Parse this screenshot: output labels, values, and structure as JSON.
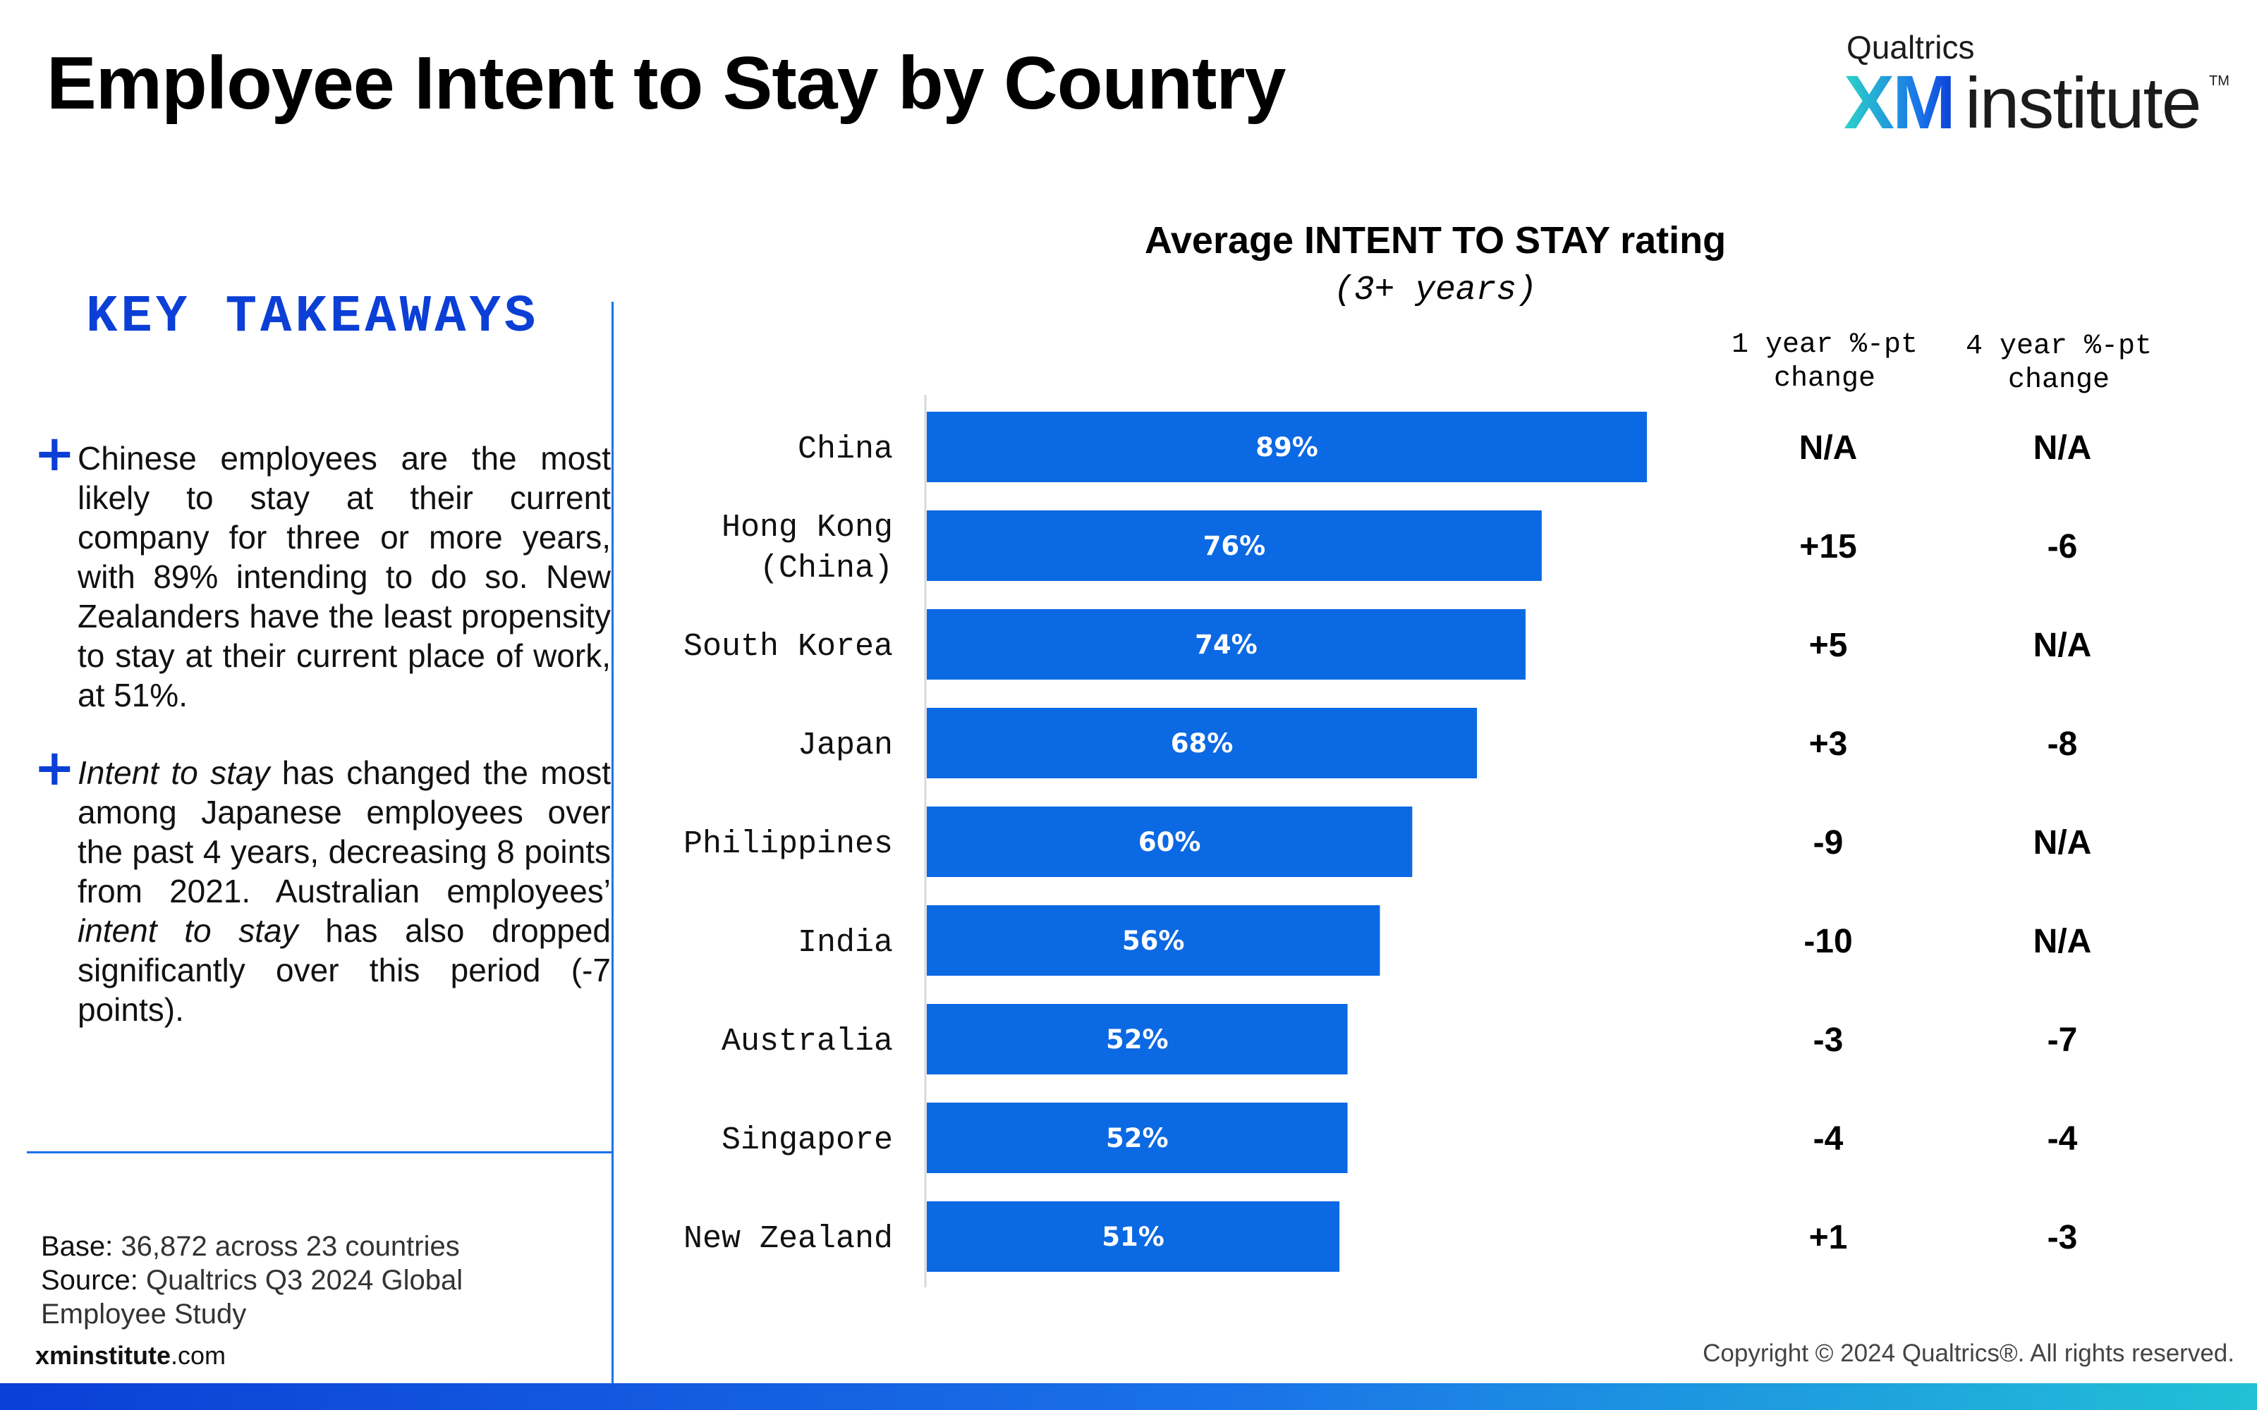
{
  "title": "Employee Intent to Stay by Country",
  "brand": {
    "top": "Qualtrics",
    "xm": "XM",
    "name": "institute",
    "tm": "TM",
    "accent": "#0B3FD6"
  },
  "takeaways": {
    "heading": "KEY TAKEAWAYS",
    "bullet_icon": "plus-icon",
    "bullet1": "Chinese employees are the most likely to stay at their current company for three or more years, with 89% intending to do so. New Zealanders have the least propensity to stay at their current place of work, at 51%.",
    "bullet2": {
      "part1": "Intent to stay",
      "part2": " has changed the most among Japanese employees over the past 4 years, decreasing 8 points from 2021. Australian employees’ ",
      "part3": "intent to stay",
      "part4": " has also dropped significantly over this period (-7 points)."
    }
  },
  "footer": {
    "base_label": "Base:",
    "base_value": " 36,872 across 23 countries",
    "source_label": "Source:",
    "source_value": " Qualtrics Q3 2024 Global Employee Study",
    "site_bold": "xminstitute",
    "site_rest": ".com",
    "copyright": "Copyright © 2024 Qualtrics®. All rights reserved."
  },
  "chart_data": {
    "type": "bar",
    "orientation": "horizontal",
    "title": "Average INTENT TO STAY rating",
    "subtitle": "(3+ years)",
    "bar_color": "#0B69E3",
    "categories": [
      [
        "China"
      ],
      [
        "Hong Kong",
        "(China)"
      ],
      [
        "South Korea"
      ],
      [
        "Japan"
      ],
      [
        "Philippines"
      ],
      [
        "India"
      ],
      [
        "Australia"
      ],
      [
        "Singapore"
      ],
      [
        "New Zealand"
      ]
    ],
    "values": [
      89,
      76,
      74,
      68,
      60,
      56,
      52,
      52,
      51
    ],
    "value_labels": [
      "89%",
      "76%",
      "74%",
      "68%",
      "60%",
      "56%",
      "52%",
      "52%",
      "51%"
    ],
    "xlim": [
      0,
      100
    ],
    "columns": [
      {
        "header": [
          "1 year %-pt",
          "change"
        ],
        "values": [
          "N/A",
          "+15",
          "+5",
          "+3",
          "-9",
          "-10",
          "-3",
          "-4",
          "+1"
        ]
      },
      {
        "header": [
          "4 year %-pt",
          "change"
        ],
        "values": [
          "N/A",
          "-6",
          "N/A",
          "-8",
          "N/A",
          "N/A",
          "-7",
          "-4",
          "-3"
        ]
      }
    ]
  }
}
